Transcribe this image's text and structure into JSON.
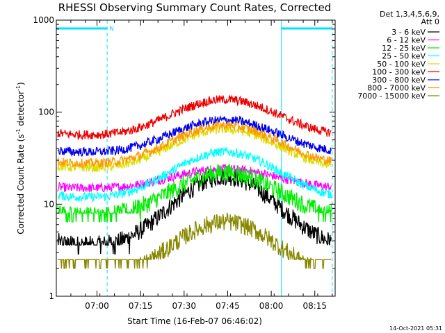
{
  "chart_data": {
    "type": "line",
    "title": "RHESSI Observing Summary Count Rates, Corrected",
    "xlabel": "Start Time (16-Feb-07 06:46:02)",
    "ylabel_main": "Corrected Count Rate (s",
    "ylabel_sup1": "-1",
    "ylabel_mid": " detector",
    "ylabel_sup2": "-1",
    "ylabel_end": ")",
    "yscale": "log",
    "ylim": [
      1,
      1000
    ],
    "xlim_minutes": [
      0,
      96
    ],
    "yticks": [
      {
        "value": 1,
        "label": "1"
      },
      {
        "value": 10,
        "label": "10"
      },
      {
        "value": 100,
        "label": "100"
      },
      {
        "value": 1000,
        "label": "1000"
      }
    ],
    "xticks": [
      {
        "minute": 14,
        "label": "07:00"
      },
      {
        "minute": 29,
        "label": "07:15"
      },
      {
        "minute": 44,
        "label": "07:30"
      },
      {
        "minute": 59,
        "label": "07:45"
      },
      {
        "minute": 74,
        "label": "08:00"
      },
      {
        "minute": 89,
        "label": "08:15"
      }
    ],
    "legend_header": [
      "Det 1,3,4,5,6,9,",
      "Att 0"
    ],
    "legend_placement": "right",
    "night_markers": [
      {
        "start_minute": 0,
        "end_minute": 17.5,
        "label": "N"
      },
      {
        "start_minute": 77.5,
        "end_minute": 95
      }
    ],
    "series": [
      {
        "name": "3 - 6 keV",
        "color": "#000000",
        "min": 3.6,
        "max": 20,
        "plateau": 3.6
      },
      {
        "name": "6 - 12 keV",
        "color": "#ff00ff",
        "min": 15,
        "max": 24
      },
      {
        "name": "12 - 25 keV",
        "color": "#00ee00",
        "min": 7.5,
        "max": 22,
        "plateau": 8
      },
      {
        "name": "25 - 50 keV",
        "color": "#00ffff",
        "min": 12,
        "max": 37
      },
      {
        "name": "50 - 100 keV",
        "color": "#dddd00",
        "min": 25,
        "max": 65
      },
      {
        "name": "100 - 300 keV",
        "color": "#ee0000",
        "min": 57,
        "max": 137
      },
      {
        "name": "300 - 800 keV",
        "color": "#0000ee",
        "min": 37,
        "max": 82
      },
      {
        "name": "800 - 7000 keV",
        "color": "#ff9900",
        "min": 28,
        "max": 72
      },
      {
        "name": "7000 - 15000 keV",
        "color": "#888800",
        "min": 1.6,
        "max": 6.4,
        "plateau": 2.5
      }
    ],
    "footer": "14-Oct-2021 05:31"
  }
}
